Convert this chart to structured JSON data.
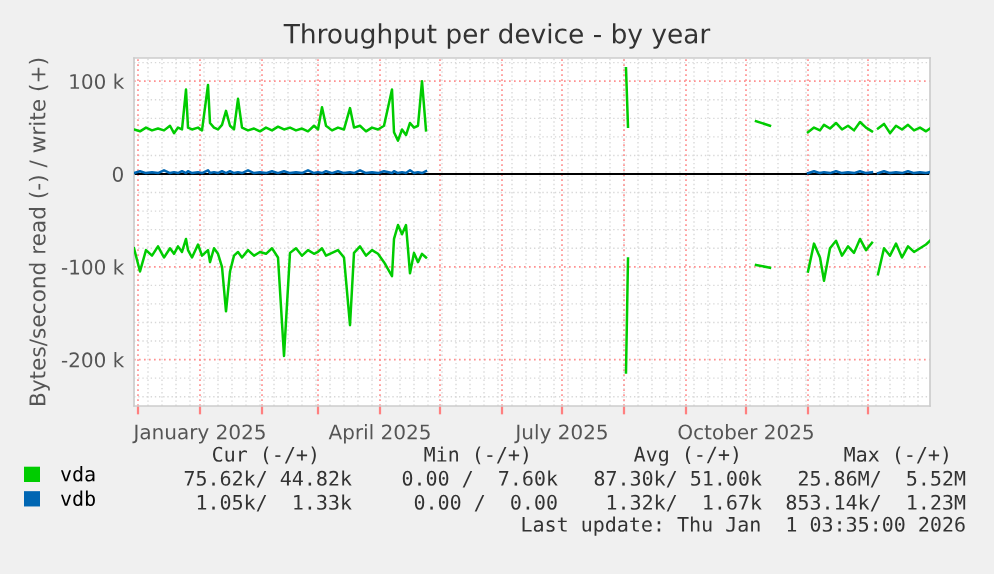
{
  "chart_data": {
    "type": "line",
    "title": "Throughput per device - by year",
    "ylabel": "Bytes/second read (-) / write (+)",
    "x": [
      "2024-11-29",
      "2024-12-02",
      "2024-12-05",
      "2024-12-08",
      "2024-12-11",
      "2024-12-14",
      "2024-12-17",
      "2024-12-19",
      "2024-12-21",
      "2024-12-23",
      "2024-12-25",
      "2024-12-26",
      "2024-12-28",
      "2024-12-31",
      "2025-01-02",
      "2025-01-05",
      "2025-01-06",
      "2025-01-08",
      "2025-01-10",
      "2025-01-12",
      "2025-01-14",
      "2025-01-16",
      "2025-01-18",
      "2025-01-20",
      "2025-01-22",
      "2025-01-25",
      "2025-01-28",
      "2025-01-31",
      "2025-02-03",
      "2025-02-06",
      "2025-02-09",
      "2025-02-12",
      "2025-02-15",
      "2025-02-18",
      "2025-02-21",
      "2025-02-24",
      "2025-02-27",
      "2025-03-01",
      "2025-03-03",
      "2025-03-05",
      "2025-03-08",
      "2025-03-11",
      "2025-03-14",
      "2025-03-17",
      "2025-03-19",
      "2025-03-22",
      "2025-03-25",
      "2025-03-28",
      "2025-03-31",
      "2025-04-03",
      "2025-04-07",
      "2025-04-08",
      "2025-04-10",
      "2025-04-12",
      "2025-04-14",
      "2025-04-16",
      "2025-04-18",
      "2025-04-20",
      "2025-04-22",
      "2025-04-24",
      "2025-06-01",
      "2025-08-02",
      "2025-08-03",
      "2025-09-01",
      "2025-10-06",
      "2025-10-13",
      "2025-10-20",
      "2025-11-01",
      "2025-11-04",
      "2025-11-07",
      "2025-11-09",
      "2025-11-12",
      "2025-11-15",
      "2025-11-18",
      "2025-11-21",
      "2025-11-24",
      "2025-11-27",
      "2025-11-30",
      "2025-12-03",
      "2025-12-04",
      "2025-12-06",
      "2025-12-09",
      "2025-12-12",
      "2025-12-15",
      "2025-12-18",
      "2025-12-21",
      "2025-12-24",
      "2025-12-27",
      "2025-12-30",
      "2026-01-01"
    ],
    "series": [
      {
        "name": "vda",
        "color": "#00cc00",
        "values": [
          48000,
          46000,
          50000,
          47000,
          49000,
          47000,
          52000,
          44000,
          50000,
          48000,
          91000,
          50000,
          48000,
          50000,
          47000,
          96000,
          55000,
          50000,
          48000,
          53000,
          68000,
          52000,
          48000,
          81000,
          50000,
          47000,
          49000,
          46000,
          50000,
          47000,
          51000,
          48000,
          50000,
          47000,
          49000,
          46000,
          52000,
          48000,
          72000,
          52000,
          47000,
          50000,
          48000,
          71000,
          50000,
          52000,
          46000,
          50000,
          48000,
          52000,
          91000,
          45000,
          36000,
          48000,
          42000,
          55000,
          50000,
          52000,
          100000,
          47000,
          null,
          114000,
          51000,
          null,
          57000,
          52000,
          null,
          45000,
          50000,
          47000,
          53000,
          49000,
          55000,
          48000,
          52000,
          47000,
          56000,
          50000,
          46000,
          null,
          49000,
          54000,
          44000,
          52000,
          48000,
          53000,
          47000,
          50000,
          46000,
          49000
        ]
      },
      {
        "color": "#00cc00",
        "values": [
          -80000,
          -105000,
          -82000,
          -88000,
          -78000,
          -90000,
          -80000,
          -86000,
          -78000,
          -84000,
          -70000,
          -82000,
          -90000,
          -76000,
          -88000,
          -82000,
          -95000,
          -80000,
          -86000,
          -100000,
          -148000,
          -105000,
          -88000,
          -84000,
          -90000,
          -82000,
          -88000,
          -84000,
          -86000,
          -80000,
          -90000,
          -196000,
          -85000,
          -80000,
          -88000,
          -82000,
          -86000,
          -84000,
          -80000,
          -88000,
          -85000,
          -82000,
          -90000,
          -163000,
          -85000,
          -78000,
          -88000,
          -82000,
          -86000,
          -95000,
          -110000,
          -70000,
          -55000,
          -65000,
          -55000,
          -107000,
          -85000,
          -95000,
          -86000,
          -90000,
          null,
          -214000,
          -91000,
          null,
          -98000,
          -101000,
          null,
          -105000,
          -75000,
          -90000,
          -115000,
          -80000,
          -72000,
          -88000,
          -78000,
          -85000,
          -70000,
          -82000,
          -74000,
          null,
          -108000,
          -80000,
          -88000,
          -75000,
          -90000,
          -78000,
          -84000,
          -80000,
          -76000,
          -72000
        ]
      },
      {
        "name": "vdb",
        "color": "#0066b3",
        "values": [
          1000,
          3000,
          1000,
          2000,
          1000,
          4000,
          1000,
          2000,
          1000,
          3000,
          1000,
          3000,
          1000,
          2000,
          1000,
          4000,
          1000,
          2000,
          1000,
          3000,
          1000,
          3000,
          1000,
          2000,
          1000,
          4000,
          1000,
          2000,
          1000,
          3000,
          1000,
          3000,
          1000,
          2000,
          1000,
          4000,
          1000,
          2000,
          1000,
          3000,
          1000,
          3000,
          1000,
          2000,
          1000,
          4000,
          1000,
          2000,
          1000,
          3000,
          1000,
          3000,
          1000,
          2000,
          1000,
          4000,
          1000,
          2000,
          1000,
          3000,
          null,
          null,
          null,
          null,
          null,
          null,
          null,
          1000,
          3000,
          1000,
          2000,
          1000,
          3000,
          1000,
          2000,
          1000,
          3000,
          1000,
          2000,
          null,
          1000,
          3000,
          1000,
          2000,
          1000,
          3000,
          1000,
          2000,
          1000,
          2000
        ]
      }
    ],
    "xlim": [
      "2024-11-29",
      "2026-01-01"
    ],
    "xticks": [
      {
        "value": "2024-12-01",
        "label": null
      },
      {
        "value": "2025-01-01",
        "label": "January 2025"
      },
      {
        "value": "2025-02-01",
        "label": null
      },
      {
        "value": "2025-03-01",
        "label": null
      },
      {
        "value": "2025-04-01",
        "label": "April 2025"
      },
      {
        "value": "2025-05-01",
        "label": null
      },
      {
        "value": "2025-06-01",
        "label": null
      },
      {
        "value": "2025-07-01",
        "label": "July 2025"
      },
      {
        "value": "2025-08-01",
        "label": null
      },
      {
        "value": "2025-09-01",
        "label": null
      },
      {
        "value": "2025-10-01",
        "label": "October 2025"
      },
      {
        "value": "2025-11-01",
        "label": null
      },
      {
        "value": "2025-12-01",
        "label": null
      }
    ],
    "ylim": [
      -250000,
      125000
    ],
    "yticks": [
      {
        "value": -200000,
        "label": "-200 k"
      },
      {
        "value": -100000,
        "label": "-100 k"
      },
      0,
      {
        "value": 100000,
        "label": "100 k"
      }
    ],
    "ref_lines": [
      {
        "axis": "y",
        "value": 0,
        "color": "#000000"
      }
    ],
    "grid": true,
    "legend": "bottom left",
    "annotations": [
      "Cur (-/+)",
      "Min (-/+)",
      "Avg (-/+)",
      "Max (-/+)",
      "75.62k/ 44.82k",
      "0.00 /  7.60k",
      "87.30k/ 51.00k",
      "25.86M/  5.52M",
      "1.05k/  1.33k",
      "0.00 /  0.00",
      "1.32k/  1.67k",
      "853.14k/  1.23M",
      "Last update: Thu Jan  1 03:35:00 2026"
    ]
  }
}
